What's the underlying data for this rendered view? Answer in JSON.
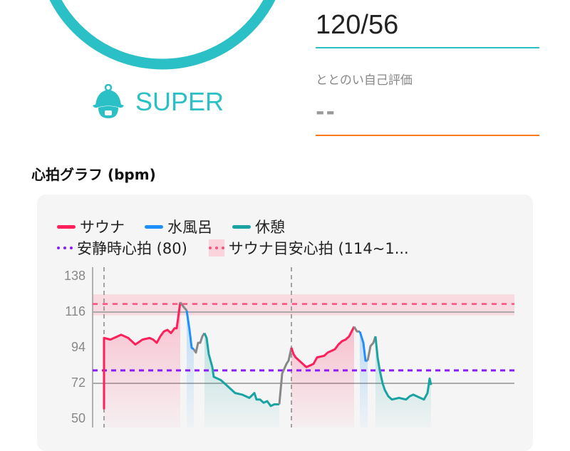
{
  "header": {
    "rank_label": "SUPER",
    "rank_icon": "sauna-hat-icon",
    "ring_color": "#2bc0c6",
    "blood_pressure": "120/56",
    "self_eval_label": "ととのい自己評価",
    "self_eval_value": "--"
  },
  "graph": {
    "title": "心拍グラフ (bpm)",
    "legend": {
      "sauna": "サウナ",
      "water": "水風呂",
      "rest": "休憩",
      "resting_hr": "安静時心拍 (80)",
      "target_hr": "サウナ目安心拍 (114~1..."
    }
  },
  "chart_data": {
    "type": "line",
    "ylim": [
      50,
      138
    ],
    "yticks": [
      "138",
      "116",
      "94",
      "72",
      "50"
    ],
    "xlim": [
      0,
      118
    ],
    "grid_lines": [
      116,
      72
    ],
    "resting_hr": 80,
    "target_band": [
      114,
      127
    ],
    "target_line": 121,
    "set_markers": [
      3.2,
      55.8
    ],
    "colors": {
      "sauna": "#ff1f5a",
      "water": "#1f8fff",
      "rest": "#1aa3a3",
      "transition": "#888888",
      "resting": "#8a1cff",
      "target": "#ff4f7b"
    },
    "segments": [
      {
        "type": "sauna",
        "points": [
          [
            3.2,
            56
          ],
          [
            3.2,
            100
          ],
          [
            5,
            99
          ],
          [
            7,
            101
          ],
          [
            8,
            102
          ],
          [
            10,
            100
          ],
          [
            12,
            96
          ],
          [
            14,
            99
          ],
          [
            16,
            100
          ],
          [
            17,
            99
          ],
          [
            18,
            97
          ],
          [
            19,
            101
          ],
          [
            20,
            104
          ],
          [
            21,
            105
          ],
          [
            22,
            103
          ],
          [
            23,
            106
          ],
          [
            23.6,
            106
          ],
          [
            24.6,
            122
          ]
        ]
      },
      {
        "type": "transition",
        "points": [
          [
            24.6,
            122
          ],
          [
            25.6,
            119
          ],
          [
            26.4,
            117
          ]
        ]
      },
      {
        "type": "water",
        "points": [
          [
            26.4,
            117
          ],
          [
            27.2,
            105
          ],
          [
            27.8,
            94
          ],
          [
            28.4,
            93
          ]
        ]
      },
      {
        "type": "transition",
        "points": [
          [
            28.4,
            93
          ],
          [
            29,
            91
          ],
          [
            29.6,
            97
          ],
          [
            30.2,
            97
          ],
          [
            30.8,
            101
          ],
          [
            31.4,
            103
          ]
        ]
      },
      {
        "type": "rest",
        "points": [
          [
            31.4,
            103
          ],
          [
            32,
            100
          ],
          [
            32.6,
            90
          ],
          [
            33.6,
            82
          ],
          [
            34,
            76
          ],
          [
            36,
            74
          ],
          [
            38,
            70
          ],
          [
            40,
            66
          ],
          [
            42,
            65
          ],
          [
            44,
            63
          ],
          [
            45.4,
            66
          ],
          [
            46,
            62
          ],
          [
            47,
            62
          ],
          [
            48,
            60
          ],
          [
            49,
            61
          ],
          [
            50,
            58
          ],
          [
            51,
            59
          ],
          [
            52.4,
            59
          ]
        ]
      },
      {
        "type": "transition",
        "points": [
          [
            52.4,
            59
          ],
          [
            53.2,
            78
          ],
          [
            53.6,
            80
          ],
          [
            54.4,
            84
          ],
          [
            55,
            86
          ],
          [
            55.8,
            94
          ]
        ]
      },
      {
        "type": "sauna",
        "points": [
          [
            55.8,
            94
          ],
          [
            56.4,
            90
          ],
          [
            57,
            88
          ],
          [
            58,
            86
          ],
          [
            59,
            84
          ],
          [
            60,
            82
          ],
          [
            61,
            83
          ],
          [
            62,
            84
          ],
          [
            63,
            88
          ],
          [
            65,
            89
          ],
          [
            66,
            91
          ],
          [
            68,
            93
          ],
          [
            69,
            96
          ],
          [
            70,
            98
          ],
          [
            71,
            99
          ],
          [
            72,
            101
          ],
          [
            73.4,
            107
          ]
        ]
      },
      {
        "type": "transition",
        "points": [
          [
            73.4,
            107
          ],
          [
            74.2,
            104
          ],
          [
            75,
            104
          ]
        ]
      },
      {
        "type": "water",
        "points": [
          [
            75,
            104
          ],
          [
            76,
            97
          ],
          [
            76.6,
            86
          ],
          [
            77.2,
            86
          ]
        ]
      },
      {
        "type": "transition",
        "points": [
          [
            77.2,
            86
          ],
          [
            78,
            95
          ],
          [
            78.8,
            97
          ],
          [
            79.4,
            101
          ]
        ]
      },
      {
        "type": "rest",
        "points": [
          [
            79.4,
            101
          ],
          [
            80,
            88
          ],
          [
            80.6,
            80
          ],
          [
            81.4,
            72
          ],
          [
            82,
            68
          ],
          [
            83,
            64
          ],
          [
            84,
            62
          ],
          [
            86,
            63
          ],
          [
            88,
            62
          ],
          [
            89,
            64
          ],
          [
            90,
            65
          ],
          [
            92,
            63
          ],
          [
            93,
            62
          ],
          [
            94,
            66
          ],
          [
            94.6,
            75
          ],
          [
            95,
            71
          ]
        ]
      }
    ]
  }
}
